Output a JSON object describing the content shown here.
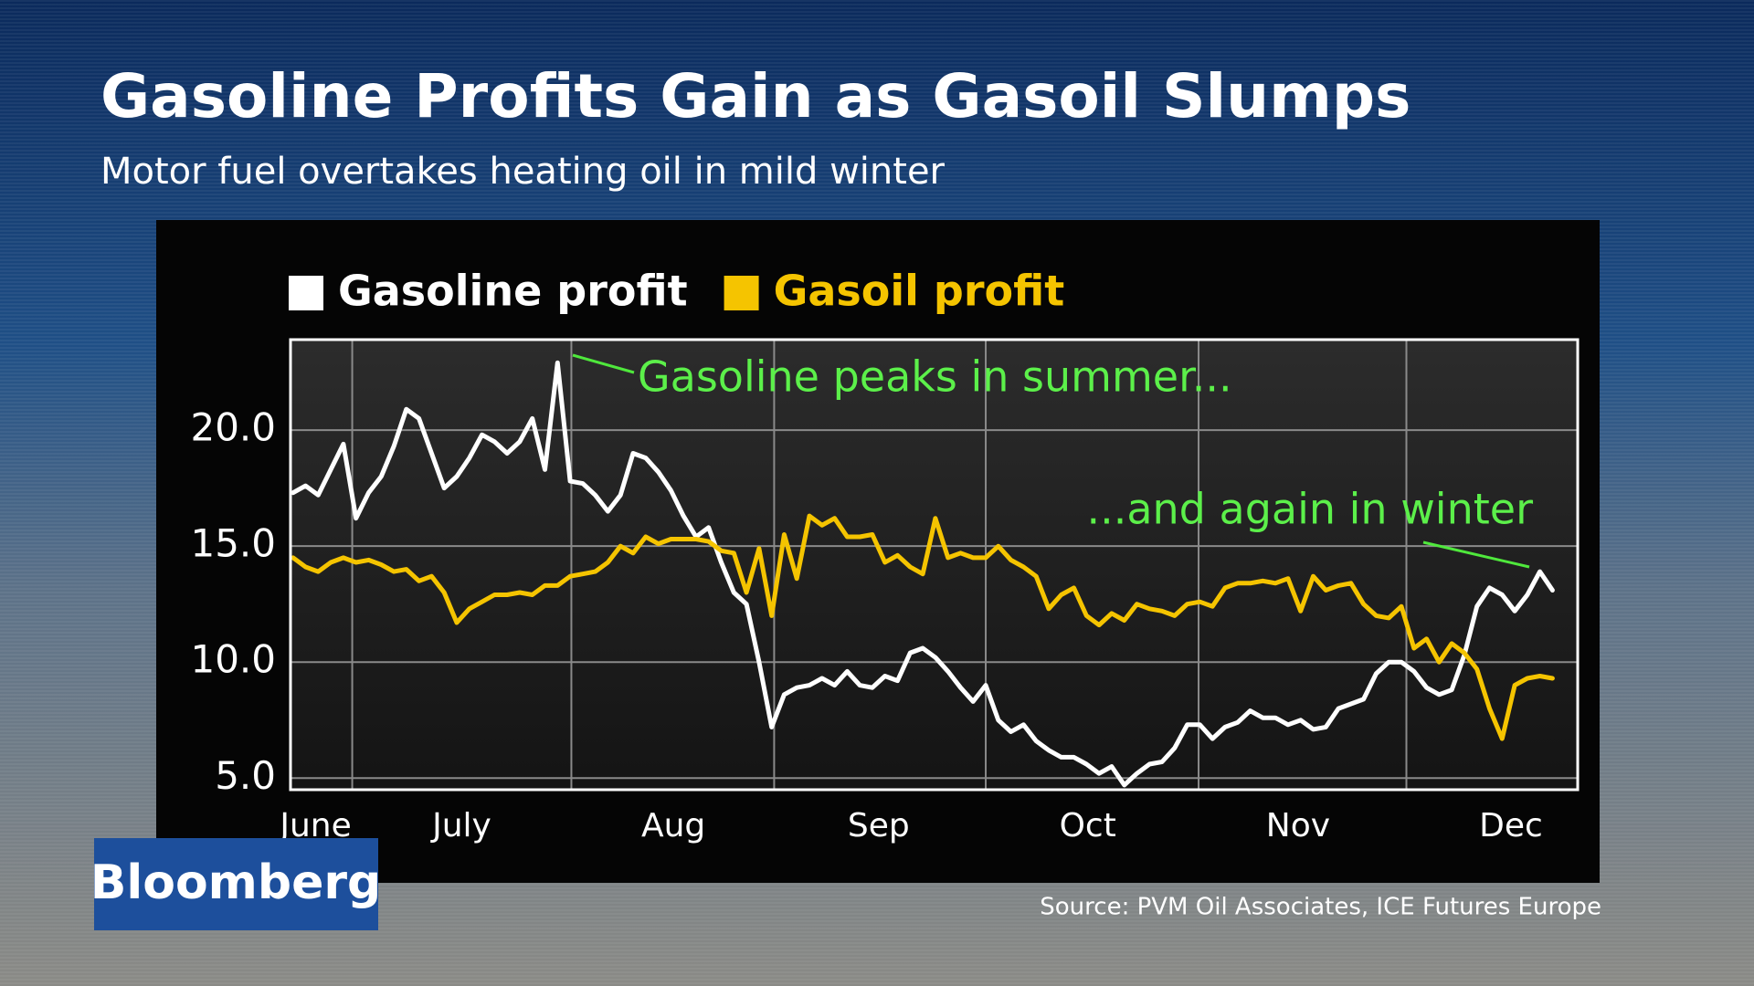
{
  "chart_data": {
    "type": "line",
    "title": "Gasoline Profits Gain as Gasoil Slumps",
    "subtitle": "Motor fuel overtakes heating oil in mild winter",
    "source": "Source: PVM Oil Associates, ICE Futures Europe",
    "brand": "Bloomberg",
    "annotations": [
      "Gasoline peaks in summer...",
      "...and again in winter"
    ],
    "xlim": [
      -0.2,
      102.0
    ],
    "xticks": [
      {
        "value": 1.8,
        "label": "June"
      },
      {
        "value": 13.4,
        "label": "July"
      },
      {
        "value": 30.2,
        "label": "Aug"
      },
      {
        "value": 46.5,
        "label": "Sep"
      },
      {
        "value": 63.1,
        "label": "Oct"
      },
      {
        "value": 79.8,
        "label": "Nov"
      },
      {
        "value": 96.7,
        "label": "Dec"
      }
    ],
    "xgrid": [
      4.7,
      22.1,
      38.2,
      55,
      71.9,
      88.4
    ],
    "ylim": [
      4.5,
      23.9
    ],
    "yticks": [
      {
        "value": 5,
        "label": "5.0"
      },
      {
        "value": 10,
        "label": "10.0"
      },
      {
        "value": 15,
        "label": "15.0"
      },
      {
        "value": 20,
        "label": "20.0"
      }
    ],
    "grid": true,
    "series": [
      {
        "name": "Gasoline profit",
        "color": "#ffffff",
        "values": [
          17.3,
          17.6,
          17.2,
          18.3,
          19.4,
          16.2,
          17.3,
          18.0,
          19.3,
          20.9,
          20.5,
          19.0,
          17.5,
          18.0,
          18.8,
          19.8,
          19.5,
          19.0,
          19.5,
          20.5,
          18.3,
          22.9,
          17.8,
          17.7,
          17.2,
          16.5,
          17.2,
          19.0,
          18.8,
          18.2,
          17.4,
          16.3,
          15.4,
          15.8,
          14.3,
          13.0,
          12.5,
          10.0,
          7.2,
          8.6,
          8.9,
          9.0,
          9.3,
          9.0,
          9.6,
          9.0,
          8.9,
          9.4,
          9.2,
          10.4,
          10.6,
          10.2,
          9.6,
          8.9,
          8.3,
          9.0,
          7.5,
          7.0,
          7.3,
          6.6,
          6.2,
          5.9,
          5.9,
          5.6,
          5.2,
          5.5,
          4.7,
          5.2,
          5.6,
          5.7,
          6.3,
          7.3,
          7.3,
          6.7,
          7.2,
          7.4,
          7.9,
          7.6,
          7.6,
          7.3,
          7.5,
          7.1,
          7.2,
          8.0,
          8.2,
          8.4,
          9.5,
          10.0,
          10.0,
          9.6,
          8.9,
          8.6,
          8.8,
          10.3,
          12.4,
          13.2,
          12.9,
          12.2,
          12.9,
          13.9,
          13.1
        ]
      },
      {
        "name": "Gasoil profit",
        "color": "#f5c400",
        "values": [
          14.5,
          14.1,
          13.9,
          14.3,
          14.5,
          14.3,
          14.4,
          14.2,
          13.9,
          14.0,
          13.5,
          13.7,
          13.0,
          11.7,
          12.3,
          12.6,
          12.9,
          12.9,
          13.0,
          12.9,
          13.3,
          13.3,
          13.7,
          13.8,
          13.9,
          14.3,
          15.0,
          14.7,
          15.4,
          15.1,
          15.3,
          15.3,
          15.3,
          15.2,
          14.8,
          14.7,
          13.0,
          14.9,
          12.0,
          15.5,
          13.6,
          16.3,
          15.9,
          16.2,
          15.4,
          15.4,
          15.5,
          14.3,
          14.6,
          14.1,
          13.8,
          16.2,
          14.5,
          14.7,
          14.5,
          14.5,
          15.0,
          14.4,
          14.1,
          13.7,
          12.3,
          12.9,
          13.2,
          12.0,
          11.6,
          12.1,
          11.8,
          12.5,
          12.3,
          12.2,
          12.0,
          12.5,
          12.6,
          12.4,
          13.2,
          13.4,
          13.4,
          13.5,
          13.4,
          13.6,
          12.2,
          13.7,
          13.1,
          13.3,
          13.4,
          12.5,
          12.0,
          11.9,
          12.4,
          10.6,
          11.0,
          10.0,
          10.8,
          10.4,
          9.7,
          8.0,
          6.7,
          9.0,
          9.3,
          9.4,
          9.3
        ]
      }
    ]
  }
}
